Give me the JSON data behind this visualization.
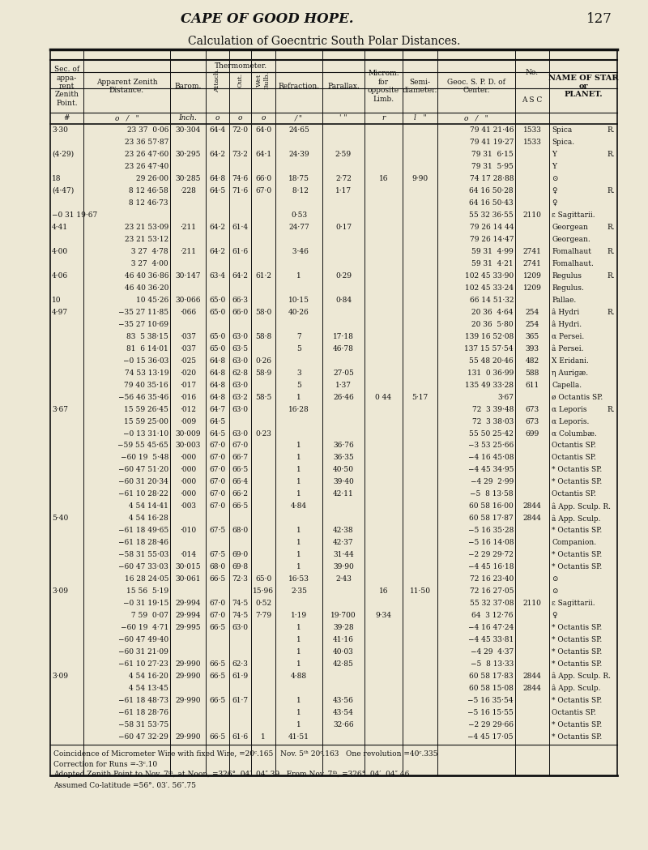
{
  "page_title": "CAPE OF GOOD HOPE.",
  "page_number": "127",
  "table_title": "Calculation of Goecntric South Polar Distances.",
  "bg_color": "#ede8d5",
  "text_color": "#111111",
  "footnote_lines": [
    "Coincidence of Micrometer Wire with fixed Wire, =20ᶜ.165   Nov. 5ᵗʰ 20ᶜ.163   One revolution =40ᶜ.335",
    "Correction for Runs =-3ᶜ.10",
    "Adopted Zenith Point to Nov. 7ᵗʰ, at Noon, =326°. 04′. 04″.39   From Nov. 7ᵗʰ, =326°. 04′. 04″.46",
    "Assumed Co-latitude =56°. 03′. 56″.75"
  ],
  "rows": [
    {
      "sec": "3·30",
      "zen": "23 37  0·06",
      "bar": "30·304",
      "att": "64·4",
      "out": "72·0",
      "wet": "64·0",
      "ref": "24·65",
      "par": "",
      "mic": "",
      "sem": "",
      "geo": "79 41 21·46",
      "no": "1533",
      "name": "Spica",
      "r": "R."
    },
    {
      "sec": "",
      "zen": "23 36 57·87",
      "bar": "",
      "att": "",
      "out": "",
      "wet": "",
      "ref": "",
      "par": "",
      "mic": "",
      "sem": "",
      "geo": "79 41 19·27",
      "no": "1533",
      "name": "Spica.",
      "r": ""
    },
    {
      "sec": "(4·29)",
      "zen": "23 26 47·60",
      "bar": "30·295",
      "att": "64·2",
      "out": "73·2",
      "wet": "64·1",
      "ref": "24·39",
      "par": "2·59",
      "mic": "",
      "sem": "",
      "geo": "79 31  6·15",
      "no": "",
      "name": "Y",
      "r": "R."
    },
    {
      "sec": "",
      "zen": "23 26 47·40",
      "bar": "",
      "att": "",
      "out": "",
      "wet": "",
      "ref": "",
      "par": "",
      "mic": "",
      "sem": "",
      "geo": "79 31  5·95",
      "no": "",
      "name": "Y",
      "r": ""
    },
    {
      "sec": "18",
      "zen": "29 26·00",
      "bar": "30·285",
      "att": "64·8",
      "out": "74·6",
      "wet": "66·0",
      "ref": "18·75",
      "par": "2·72",
      "mic": "16",
      "sem": "9·90",
      "geo": "74 17 28·88",
      "no": "",
      "name": "⊙",
      "r": ""
    },
    {
      "sec": "(4·47)",
      "zen": " 8 12 46·58",
      "bar": "·228",
      "att": "64·5",
      "out": "71·6",
      "wet": "67·0",
      "ref": " 8·12",
      "par": "1·17",
      "mic": "",
      "sem": "",
      "geo": "64 16 50·28",
      "no": "",
      "name": "♀",
      "r": "R."
    },
    {
      "sec": "",
      "zen": " 8 12 46·73",
      "bar": "",
      "att": "",
      "out": "",
      "wet": "",
      "ref": "",
      "par": "",
      "mic": "",
      "sem": "",
      "geo": "64 16 50·43",
      "no": "",
      "name": "♀",
      "r": ""
    },
    {
      "sec": "−0 31 19·67",
      "zen": "",
      "bar": "",
      "att": "",
      "out": "",
      "wet": "",
      "ref": "0·53",
      "par": "",
      "mic": "",
      "sem": "",
      "geo": "55 32 36·55",
      "no": "2110",
      "name": "ε Sagittarii.",
      "r": ""
    },
    {
      "sec": "4·41",
      "zen": "23 21 53·09",
      "bar": "·211",
      "att": "64·2",
      "out": "61·4",
      "wet": "",
      "ref": "24·77",
      "par": "0·17",
      "mic": "",
      "sem": "",
      "geo": "79 26 14 44",
      "no": "",
      "name": "Georgean",
      "r": "R."
    },
    {
      "sec": "",
      "zen": "23 21 53·12",
      "bar": "",
      "att": "",
      "out": "",
      "wet": "",
      "ref": "",
      "par": "",
      "mic": "",
      "sem": "",
      "geo": "79 26 14·47",
      "no": "",
      "name": "Georgean.",
      "r": ""
    },
    {
      "sec": "4·00",
      "zen": " 3 27  4·78",
      "bar": "·211",
      "att": "64·2",
      "out": "61·6",
      "wet": "",
      "ref": " 3·46",
      "par": "",
      "mic": "",
      "sem": "",
      "geo": "59 31  4·99",
      "no": "2741",
      "name": "Fomalhaut",
      "r": "R."
    },
    {
      "sec": "",
      "zen": " 3 27  4·00",
      "bar": "",
      "att": "",
      "out": "",
      "wet": "",
      "ref": "",
      "par": "",
      "mic": "",
      "sem": "",
      "geo": "59 31  4·21",
      "no": "2741",
      "name": "Fomalhaut.",
      "r": ""
    },
    {
      "sec": "4·06",
      "zen": "46 40 36·86",
      "bar": "30·147",
      "att": "63·4",
      "out": "64·2",
      "wet": "61·2",
      "ref": "1",
      "par": "0·29",
      "mic": "",
      "sem": "",
      "geo": "102 45 33·90",
      "no": "1209",
      "name": "Regulus",
      "r": "R."
    },
    {
      "sec": "",
      "zen": "46 40 36·20",
      "bar": "",
      "att": "",
      "out": "",
      "wet": "",
      "ref": "",
      "par": "",
      "mic": "",
      "sem": "",
      "geo": "102 45 33·24",
      "no": "1209",
      "name": "Regulus.",
      "r": ""
    },
    {
      "sec": "10",
      "zen": "10 45·26",
      "bar": "30·066",
      "att": "65·0",
      "out": "66·3",
      "wet": "",
      "ref": "10·15",
      "par": "0·84",
      "mic": "",
      "sem": "",
      "geo": "66 14 51·32",
      "no": "",
      "name": "Pallae.",
      "r": ""
    },
    {
      "sec": "4·97",
      "zen": "−35 27 11·85",
      "bar": "·066",
      "att": "65·0",
      "out": "66·0",
      "wet": "58·0",
      "ref": "40·26",
      "par": "",
      "mic": "",
      "sem": "",
      "geo": "20 36  4·64",
      "no": "254",
      "name": "â Hydri",
      "r": "R."
    },
    {
      "sec": "",
      "zen": "−35 27 10·69",
      "bar": "",
      "att": "",
      "out": "",
      "wet": "",
      "ref": "",
      "par": "",
      "mic": "",
      "sem": "",
      "geo": "20 36  5·80",
      "no": "254",
      "name": "â Hydri.",
      "r": ""
    },
    {
      "sec": "",
      "zen": "83  5 38·15",
      "bar": "·037",
      "att": "65·0",
      "out": "63·0",
      "wet": "58·8",
      "ref": "7",
      "par": "17·18",
      "mic": "",
      "sem": "",
      "geo": "139 16 52·08",
      "no": "365",
      "name": "α Persei.",
      "r": ""
    },
    {
      "sec": "",
      "zen": "81  6 14·01",
      "bar": "·037",
      "att": "65·0",
      "out": "63·5",
      "wet": "",
      "ref": "5",
      "par": "46·78",
      "mic": "",
      "sem": "",
      "geo": "137 15 57·54",
      "no": "393",
      "name": "â Persei.",
      "r": ""
    },
    {
      "sec": "",
      "zen": "−0 15 36·03",
      "bar": "·025",
      "att": "64·8",
      "out": "63·0",
      "wet": "0·26",
      "ref": "",
      "par": "",
      "mic": "",
      "sem": "",
      "geo": "55 48 20·46",
      "no": "482",
      "name": "X Eridani.",
      "r": ""
    },
    {
      "sec": "",
      "zen": "74 53 13·19",
      "bar": "·020",
      "att": "64·8",
      "out": "62·8",
      "wet": "58·9",
      "ref": "3",
      "par": "27·05",
      "mic": "",
      "sem": "",
      "geo": "131  0 36·99",
      "no": "588",
      "name": "η Aurigæ.",
      "r": ""
    },
    {
      "sec": "",
      "zen": "79 40 35·16",
      "bar": "·017",
      "att": "64·8",
      "out": "63·0",
      "wet": "",
      "ref": "5",
      "par": "1·37",
      "mic": "",
      "sem": "",
      "geo": "135 49 33·28",
      "no": "611",
      "name": "Capella.",
      "r": ""
    },
    {
      "sec": "",
      "zen": "−56 46 35·46",
      "bar": "·016",
      "att": "64·8",
      "out": "63·2",
      "wet": "58·5",
      "ref": "1",
      "par": "26·46",
      "mic": "0 44",
      "sem": "5·17",
      "geo": "3·67",
      "no": "",
      "name": "ø Octantis SP.",
      "r": ""
    },
    {
      "sec": "3·67",
      "zen": "15 59 26·45",
      "bar": "·012",
      "att": "64·7",
      "out": "63·0",
      "wet": "",
      "ref": "16·28",
      "par": "",
      "mic": "",
      "sem": "",
      "geo": "72  3 39·48",
      "no": "673",
      "name": "α Leporis",
      "r": "R."
    },
    {
      "sec": "",
      "zen": "15 59 25·00",
      "bar": "·009",
      "att": "64·5",
      "out": "",
      "wet": "",
      "ref": "",
      "par": "",
      "mic": "",
      "sem": "",
      "geo": "72  3 38·03",
      "no": "673",
      "name": "α Leporis.",
      "r": ""
    },
    {
      "sec": "",
      "zen": "−0 13 31·10",
      "bar": "30·009",
      "att": "64·5",
      "out": "63·0",
      "wet": "0·23",
      "ref": "",
      "par": "",
      "mic": "",
      "sem": "",
      "geo": "55 50 25·42",
      "no": "699",
      "name": "α Columbæ.",
      "r": ""
    },
    {
      "sec": "",
      "zen": "−59 55 45·65",
      "bar": "30·003",
      "att": "67·0",
      "out": "67·0",
      "wet": "",
      "ref": "1",
      "par": "36·76",
      "mic": "",
      "sem": "",
      "geo": "−3 53 25·66",
      "no": "",
      "name": "Octantis SP.",
      "r": ""
    },
    {
      "sec": "",
      "zen": "−60 19  5·48",
      "bar": "·000",
      "att": "67·0",
      "out": "66·7",
      "wet": "",
      "ref": "1",
      "par": "36·35",
      "mic": "",
      "sem": "",
      "geo": "−4 16 45·08",
      "no": "",
      "name": "Octantis SP.",
      "r": ""
    },
    {
      "sec": "",
      "zen": "−60 47 51·20",
      "bar": "·000",
      "att": "67·0",
      "out": "66·5",
      "wet": "",
      "ref": "1",
      "par": "40·50",
      "mic": "",
      "sem": "",
      "geo": "−4 45 34·95",
      "no": "",
      "name": "* Octantis SP.",
      "r": ""
    },
    {
      "sec": "",
      "zen": "−60 31 20·34",
      "bar": "·000",
      "att": "67·0",
      "out": "66·4",
      "wet": "",
      "ref": "1",
      "par": "39·40",
      "mic": "",
      "sem": "",
      "geo": "−4 29  2·99",
      "no": "",
      "name": "* Octantis SP.",
      "r": ""
    },
    {
      "sec": "",
      "zen": "−61 10 28·22",
      "bar": "·000",
      "att": "67·0",
      "out": "66·2",
      "wet": "",
      "ref": "1",
      "par": "42·11",
      "mic": "",
      "sem": "",
      "geo": "−5  8 13·58",
      "no": "",
      "name": "Octantis SP.",
      "r": ""
    },
    {
      "sec": "",
      "zen": " 4 54 14·41",
      "bar": "·003",
      "att": "67·0",
      "out": "66·5",
      "wet": "",
      "ref": "4·84",
      "par": "",
      "mic": "",
      "sem": "",
      "geo": "60 58 16·00",
      "no": "2844",
      "name": "â App. Sculp. R.",
      "r": ""
    },
    {
      "sec": "5·40",
      "zen": " 4 54 16·28",
      "bar": "",
      "att": "",
      "out": "",
      "wet": "",
      "ref": "",
      "par": "",
      "mic": "",
      "sem": "",
      "geo": "60 58 17·87",
      "no": "2844",
      "name": "â App. Sculp.",
      "r": ""
    },
    {
      "sec": "",
      "zen": "−61 18 49·65",
      "bar": "·010",
      "att": "67·5",
      "out": "68·0",
      "wet": "",
      "ref": "1",
      "par": "42·38",
      "mic": "",
      "sem": "",
      "geo": "−5 16 35·28",
      "no": "",
      "name": "* Octantis SP.",
      "r": ""
    },
    {
      "sec": "",
      "zen": "−61 18 28·46",
      "bar": "",
      "att": "",
      "out": "",
      "wet": "",
      "ref": "1",
      "par": "42·37",
      "mic": "",
      "sem": "",
      "geo": "−5 16 14·08",
      "no": "",
      "name": "Companion.",
      "r": ""
    },
    {
      "sec": "",
      "zen": "−58 31 55·03",
      "bar": "·014",
      "att": "67·5",
      "out": "69·0",
      "wet": "",
      "ref": "1",
      "par": "31·44",
      "mic": "",
      "sem": "",
      "geo": "−2 29 29·72",
      "no": "",
      "name": "* Octantis SP.",
      "r": ""
    },
    {
      "sec": "",
      "zen": "−60 47 33·03",
      "bar": "30·015",
      "att": "68·0",
      "out": "69·8",
      "wet": "",
      "ref": "1",
      "par": "39·90",
      "mic": "",
      "sem": "",
      "geo": "−4 45 16·18",
      "no": "",
      "name": "* Octantis SP.",
      "r": ""
    },
    {
      "sec": "",
      "zen": "16 28 24·05",
      "bar": "30·061",
      "att": "66·5",
      "out": "72·3",
      "wet": "65·0",
      "ref": "16·53",
      "par": "2·43",
      "mic": "",
      "sem": "",
      "geo": "72 16 23·40",
      "no": "",
      "name": "⊙",
      "r": ""
    },
    {
      "sec": "3·09",
      "zen": "15 56  5·19",
      "bar": "",
      "att": "",
      "out": "",
      "wet": "15·96",
      "ref": "2·35",
      "par": "",
      "mic": "16",
      "sem": "11·50",
      "geo": "72 16 27·05",
      "no": "",
      "name": "⊙",
      "r": ""
    },
    {
      "sec": "",
      "zen": "−0 31 19·15",
      "bar": "29·994",
      "att": "67·0",
      "out": "74·5",
      "wet": "0·52",
      "ref": "",
      "par": "",
      "mic": "",
      "sem": "",
      "geo": "55 32 37·08",
      "no": "2110",
      "name": "ε Sagittarii.",
      "r": ""
    },
    {
      "sec": "",
      "zen": " 7 59  0·07",
      "bar": "29·994",
      "att": "67·0",
      "out": "74·5",
      "wet": "7·79",
      "ref": "1·19",
      "par": "19·700",
      "mic": "9·34",
      "sem": "",
      "geo": "64  3 12·76",
      "no": "",
      "name": "♀",
      "r": ""
    },
    {
      "sec": "",
      "zen": "−60 19  4·71",
      "bar": "29·995",
      "att": "66·5",
      "out": "63·0",
      "wet": "",
      "ref": "1",
      "par": "39·28",
      "mic": "",
      "sem": "",
      "geo": "−4 16 47·24",
      "no": "",
      "name": "* Octantis SP.",
      "r": ""
    },
    {
      "sec": "",
      "zen": "−60 47 49·40",
      "bar": "",
      "att": "",
      "out": "",
      "wet": "",
      "ref": "1",
      "par": "41·16",
      "mic": "",
      "sem": "",
      "geo": "−4 45 33·81",
      "no": "",
      "name": "* Octantis SP.",
      "r": ""
    },
    {
      "sec": "",
      "zen": "−60 31 21·09",
      "bar": "",
      "att": "",
      "out": "",
      "wet": "",
      "ref": "1",
      "par": "40·03",
      "mic": "",
      "sem": "",
      "geo": "−4 29  4·37",
      "no": "",
      "name": "* Octantis SP.",
      "r": ""
    },
    {
      "sec": "",
      "zen": "−61 10 27·23",
      "bar": "29·990",
      "att": "66·5",
      "out": "62·3",
      "wet": "",
      "ref": "1",
      "par": "42·85",
      "mic": "",
      "sem": "",
      "geo": "−5  8 13·33",
      "no": "",
      "name": "* Octantis SP.",
      "r": ""
    },
    {
      "sec": "3·09",
      "zen": " 4 54 16·20",
      "bar": "29·990",
      "att": "66·5",
      "out": "61·9",
      "wet": "",
      "ref": "4·88",
      "par": "",
      "mic": "",
      "sem": "",
      "geo": "60 58 17·83",
      "no": "2844",
      "name": "â App. Sculp. R.",
      "r": ""
    },
    {
      "sec": "",
      "zen": " 4 54 13·45",
      "bar": "",
      "att": "",
      "out": "",
      "wet": "",
      "ref": "",
      "par": "",
      "mic": "",
      "sem": "",
      "geo": "60 58 15·08",
      "no": "2844",
      "name": "â App. Sculp.",
      "r": ""
    },
    {
      "sec": "",
      "zen": "−61 18 48·73",
      "bar": "29·990",
      "att": "66·5",
      "out": "61·7",
      "wet": "",
      "ref": "1",
      "par": "43·56",
      "mic": "",
      "sem": "",
      "geo": "−5 16 35·54",
      "no": "",
      "name": "* Octantis SP.",
      "r": ""
    },
    {
      "sec": "",
      "zen": "−61 18 28·76",
      "bar": "",
      "att": "",
      "out": "",
      "wet": "",
      "ref": "1",
      "par": "43·54",
      "mic": "",
      "sem": "",
      "geo": "−5 16 15·55",
      "no": "",
      "name": "Octantis SP.",
      "r": ""
    },
    {
      "sec": "",
      "zen": "−58 31 53·75",
      "bar": "",
      "att": "",
      "out": "",
      "wet": "",
      "ref": "1",
      "par": "32·66",
      "mic": "",
      "sem": "",
      "geo": "−2 29 29·66",
      "no": "",
      "name": "* Octantis SP.",
      "r": ""
    },
    {
      "sec": "",
      "zen": "−60 47 32·29",
      "bar": "29·990",
      "att": "66·5",
      "out": "61·6",
      "wet": "1",
      "ref": "41·51",
      "par": "",
      "mic": "",
      "sem": "",
      "geo": "−4 45 17·05",
      "no": "",
      "name": "* Octantis SP.",
      "r": ""
    }
  ]
}
